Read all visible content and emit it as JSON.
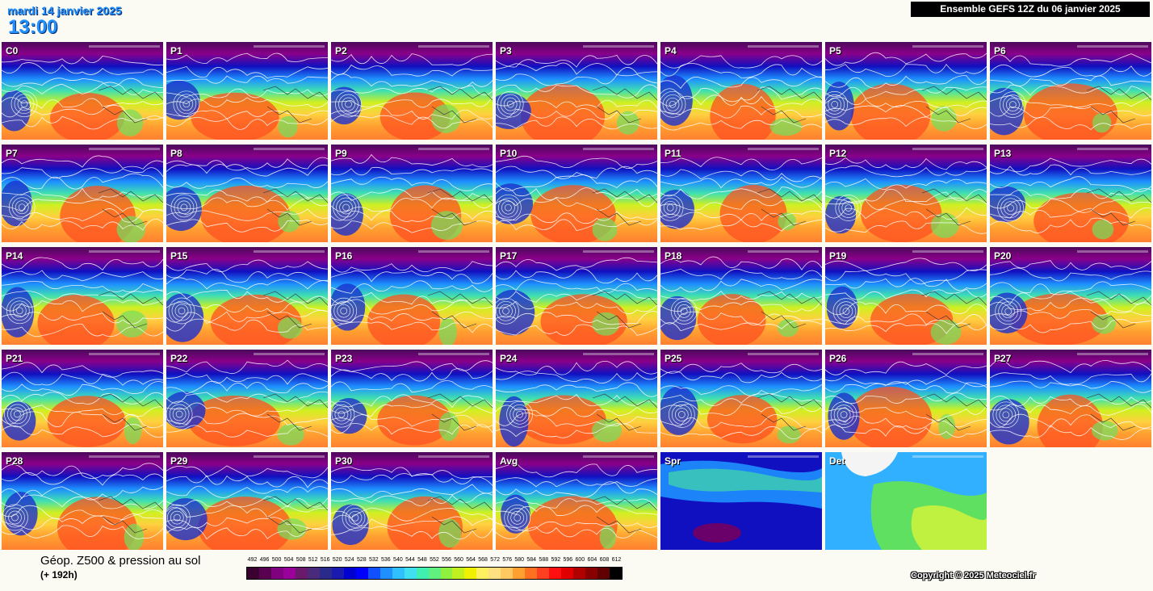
{
  "header": {
    "date": "mardi 14 janvier 2025",
    "time": "13:00",
    "run": "Ensemble GEFS 12Z du 06 janvier 2025"
  },
  "panels": [
    {
      "label": "C0",
      "style": "z500"
    },
    {
      "label": "P1",
      "style": "z500"
    },
    {
      "label": "P2",
      "style": "z500"
    },
    {
      "label": "P3",
      "style": "z500"
    },
    {
      "label": "P4",
      "style": "z500"
    },
    {
      "label": "P5",
      "style": "z500"
    },
    {
      "label": "P6",
      "style": "z500"
    },
    {
      "label": "P7",
      "style": "z500"
    },
    {
      "label": "P8",
      "style": "z500"
    },
    {
      "label": "P9",
      "style": "z500"
    },
    {
      "label": "P10",
      "style": "z500"
    },
    {
      "label": "P11",
      "style": "z500"
    },
    {
      "label": "P12",
      "style": "z500"
    },
    {
      "label": "P13",
      "style": "z500"
    },
    {
      "label": "P14",
      "style": "z500"
    },
    {
      "label": "P15",
      "style": "z500"
    },
    {
      "label": "P16",
      "style": "z500"
    },
    {
      "label": "P17",
      "style": "z500"
    },
    {
      "label": "P18",
      "style": "z500"
    },
    {
      "label": "P19",
      "style": "z500"
    },
    {
      "label": "P20",
      "style": "z500"
    },
    {
      "label": "P21",
      "style": "z500"
    },
    {
      "label": "P22",
      "style": "z500"
    },
    {
      "label": "P23",
      "style": "z500"
    },
    {
      "label": "P24",
      "style": "z500"
    },
    {
      "label": "P25",
      "style": "z500"
    },
    {
      "label": "P26",
      "style": "z500"
    },
    {
      "label": "P27",
      "style": "z500"
    },
    {
      "label": "P28",
      "style": "z500"
    },
    {
      "label": "P29",
      "style": "z500"
    },
    {
      "label": "P30",
      "style": "z500"
    },
    {
      "label": "Avg",
      "style": "z500"
    },
    {
      "label": "Spr",
      "style": "spread"
    },
    {
      "label": "Det",
      "style": "det"
    }
  ],
  "legend": {
    "title": "Géop. Z500 & pression au sol",
    "subtitle": "(+ 192h)",
    "values": [
      "492",
      "496",
      "500",
      "504",
      "508",
      "512",
      "516",
      "520",
      "524",
      "528",
      "532",
      "536",
      "540",
      "544",
      "548",
      "552",
      "556",
      "560",
      "564",
      "568",
      "572",
      "576",
      "580",
      "584",
      "588",
      "592",
      "596",
      "600",
      "604",
      "608",
      "612"
    ],
    "colors": [
      "#3a0030",
      "#5a0050",
      "#800080",
      "#9a009a",
      "#6a1a6a",
      "#4a2a7a",
      "#2a2a8a",
      "#1a1ab0",
      "#0000d0",
      "#0000ff",
      "#1050ff",
      "#1e90ff",
      "#30c0ff",
      "#40e0f0",
      "#40f0b0",
      "#60f080",
      "#90f040",
      "#c0f020",
      "#f0f000",
      "#fff060",
      "#ffe080",
      "#ffc860",
      "#ffa030",
      "#ff7020",
      "#ff4020",
      "#ff1010",
      "#e00000",
      "#b00000",
      "#880000",
      "#600000",
      "#000000"
    ]
  },
  "copyright": "Copyright © 2025 Meteociel.fr"
}
